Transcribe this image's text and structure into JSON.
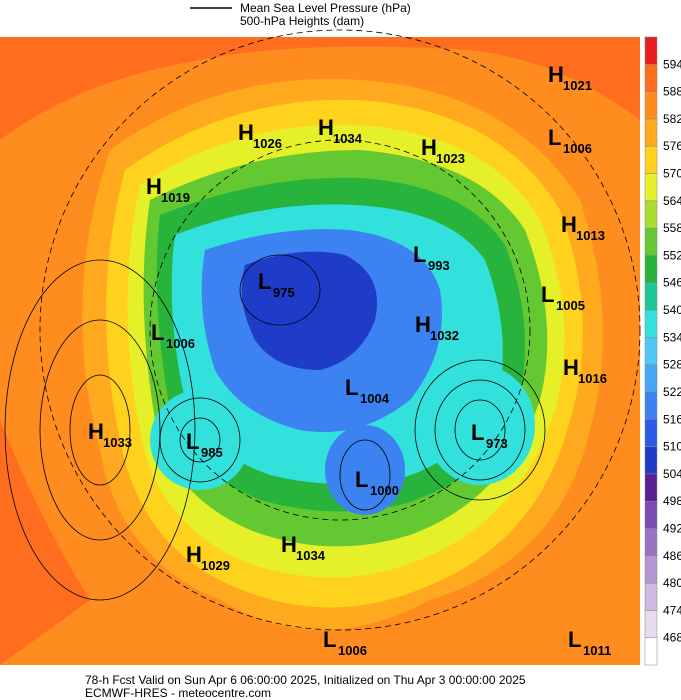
{
  "legend": {
    "mslp": "Mean Sea Level Pressure (hPa)",
    "heights": "500-hPa Heights (dam)"
  },
  "colorbar": {
    "labels": [
      468,
      474,
      480,
      486,
      492,
      498,
      504,
      510,
      516,
      522,
      528,
      534,
      540,
      546,
      552,
      558,
      564,
      570,
      576,
      582,
      588,
      594
    ],
    "colors": [
      "#ffffff",
      "#e6dcf0",
      "#cdb9e1",
      "#b496d2",
      "#9b73c3",
      "#7d4bb4",
      "#5a1e96",
      "#1e3cc8",
      "#2d5ae6",
      "#3c82f0",
      "#46a5f5",
      "#50c8f5",
      "#32e1dc",
      "#1ec896",
      "#28b43c",
      "#64c832",
      "#aadc32",
      "#e6f028",
      "#ffd21e",
      "#ffaa1e",
      "#ff8c1e",
      "#ff6e1e",
      "#e61e1e"
    ]
  },
  "centers": [
    {
      "type": "H",
      "value": 1021
    },
    {
      "type": "L",
      "value": 1006
    },
    {
      "type": "H",
      "value": 1026
    },
    {
      "type": "H",
      "value": 1034
    },
    {
      "type": "H",
      "value": 1023
    },
    {
      "type": "H",
      "value": 1019
    },
    {
      "type": "H",
      "value": 1013
    },
    {
      "type": "L",
      "value": 993
    },
    {
      "type": "L",
      "value": 975
    },
    {
      "type": "L",
      "value": 1005
    },
    {
      "type": "L",
      "value": 1006
    },
    {
      "type": "H",
      "value": 1032
    },
    {
      "type": "H",
      "value": 1016
    },
    {
      "type": "L",
      "value": 1004
    },
    {
      "type": "H",
      "value": 1033
    },
    {
      "type": "L",
      "value": 985
    },
    {
      "type": "L",
      "value": 973
    },
    {
      "type": "L",
      "value": 1000
    },
    {
      "type": "H",
      "value": 1029
    },
    {
      "type": "H",
      "value": 1034
    },
    {
      "type": "L",
      "value": 1006
    },
    {
      "type": "L",
      "value": 1011
    }
  ],
  "footer": {
    "line1": "78-h Fcst Valid on Sun Apr  6 06:00:00 2025, Initialized on Thu Apr  3 00:00:00 2025",
    "line2": "ECMWF-HRES - meteocentre.com"
  }
}
